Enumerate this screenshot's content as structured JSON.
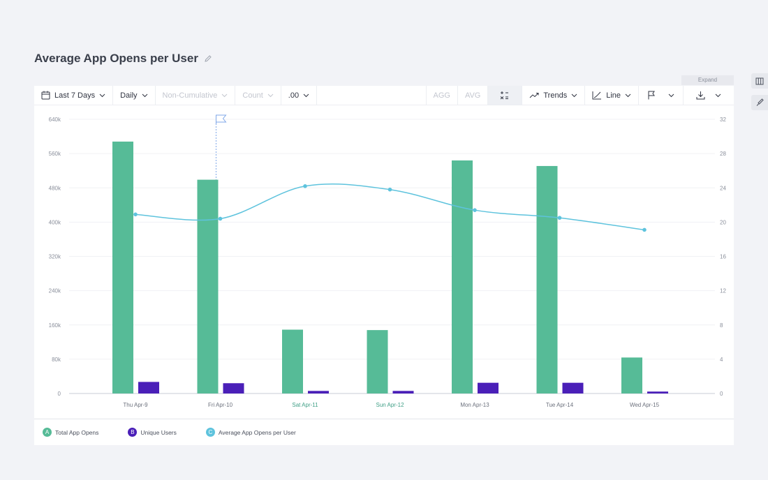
{
  "page": {
    "title": "Average App Opens per User",
    "expand_label": "Expand"
  },
  "toolbar": {
    "date_range": "Last 7 Days",
    "interval": "Daily",
    "cumulative": "Non-Cumulative",
    "measure": "Count",
    "precision": ".00",
    "agg": "AGG",
    "avg": "AVG",
    "trends": "Trends",
    "chart_type": "Line"
  },
  "colors": {
    "total_app_opens": "#56bb97",
    "unique_users": "#4a1fb8",
    "average": "#5ec3dd",
    "flag": "#7fa7e8"
  },
  "chart_data": {
    "type": "bar",
    "title": "Average App Opens per User",
    "categories": [
      "Thu Apr-9",
      "Fri Apr-10",
      "Sat Apr-11",
      "Sun Apr-12",
      "Mon Apr-13",
      "Tue Apr-14",
      "Wed Apr-15"
    ],
    "weekend_categories": [
      "Sat Apr-11",
      "Sun Apr-12"
    ],
    "y_left": {
      "ylim": [
        0,
        640000
      ],
      "ticks": [
        0,
        80000,
        160000,
        240000,
        320000,
        400000,
        480000,
        560000,
        640000
      ],
      "tick_labels": [
        "0",
        "80k",
        "160k",
        "240k",
        "320k",
        "400k",
        "480k",
        "560k",
        "640k"
      ]
    },
    "y_right": {
      "ylim": [
        0,
        32
      ],
      "ticks": [
        0,
        4,
        8,
        12,
        16,
        20,
        24,
        28,
        32
      ],
      "tick_labels": [
        "0",
        "4",
        "8",
        "12",
        "16",
        "20",
        "24",
        "28",
        "32"
      ]
    },
    "grid": true,
    "legend_position": "bottom-left",
    "flag_category": "Fri Apr-10",
    "series": [
      {
        "key": "A",
        "name": "Total App Opens",
        "type": "bar",
        "axis": "left",
        "values": [
          588000,
          499000,
          149000,
          148000,
          544000,
          531000,
          84000
        ]
      },
      {
        "key": "B",
        "name": "Unique Users",
        "type": "bar",
        "axis": "left",
        "values": [
          27000,
          24000,
          6000,
          6000,
          25000,
          25000,
          4500
        ]
      },
      {
        "key": "C",
        "name": "Average App Opens per User",
        "type": "line",
        "axis": "right",
        "values": [
          20.9,
          20.4,
          24.2,
          23.8,
          21.4,
          20.5,
          19.1
        ]
      }
    ]
  }
}
